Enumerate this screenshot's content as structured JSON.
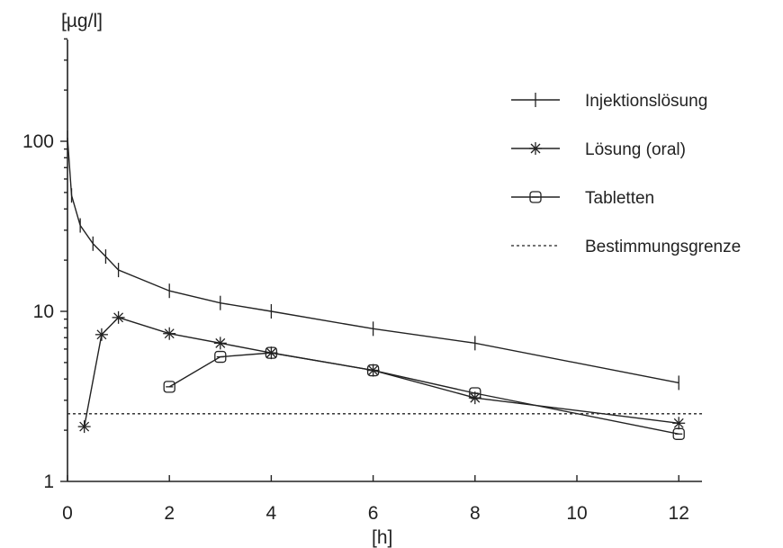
{
  "chart_data": {
    "type": "line",
    "ylabel": "[µg/l]",
    "xlabel": "[h]",
    "yscale": "log",
    "ylim": [
      1,
      500
    ],
    "xlim": [
      0,
      12.4
    ],
    "xticks": [
      "0",
      "2",
      "4",
      "6",
      "8",
      "10",
      "12"
    ],
    "yticks": [
      "1",
      "10",
      "100"
    ],
    "legend_position": "top-right",
    "series": [
      {
        "name": "Injektionslösung",
        "marker": "plus",
        "x": [
          0.0,
          0.08,
          0.25,
          0.5,
          0.75,
          1.0,
          2.0,
          3.0,
          4.0,
          6.0,
          8.0,
          12.0
        ],
        "y": [
          105,
          48,
          32,
          25,
          21,
          17.5,
          13.2,
          11.2,
          10.0,
          7.9,
          6.5,
          3.8
        ]
      },
      {
        "name": "Lösung (oral)",
        "marker": "asterisk",
        "x": [
          0.33,
          0.67,
          1.0,
          2.0,
          3.0,
          4.0,
          6.0,
          8.0,
          12.0
        ],
        "y": [
          2.1,
          7.3,
          9.2,
          7.4,
          6.5,
          5.7,
          4.5,
          3.1,
          2.2
        ]
      },
      {
        "name": "Tabletten",
        "marker": "square",
        "x": [
          2.0,
          3.0,
          4.0,
          6.0,
          8.0,
          12.0
        ],
        "y": [
          3.6,
          5.4,
          5.7,
          4.5,
          3.3,
          1.9
        ]
      }
    ],
    "reference_lines": [
      {
        "name": "Bestimmungsgrenze",
        "y": 2.5,
        "style": "dotted"
      }
    ]
  }
}
